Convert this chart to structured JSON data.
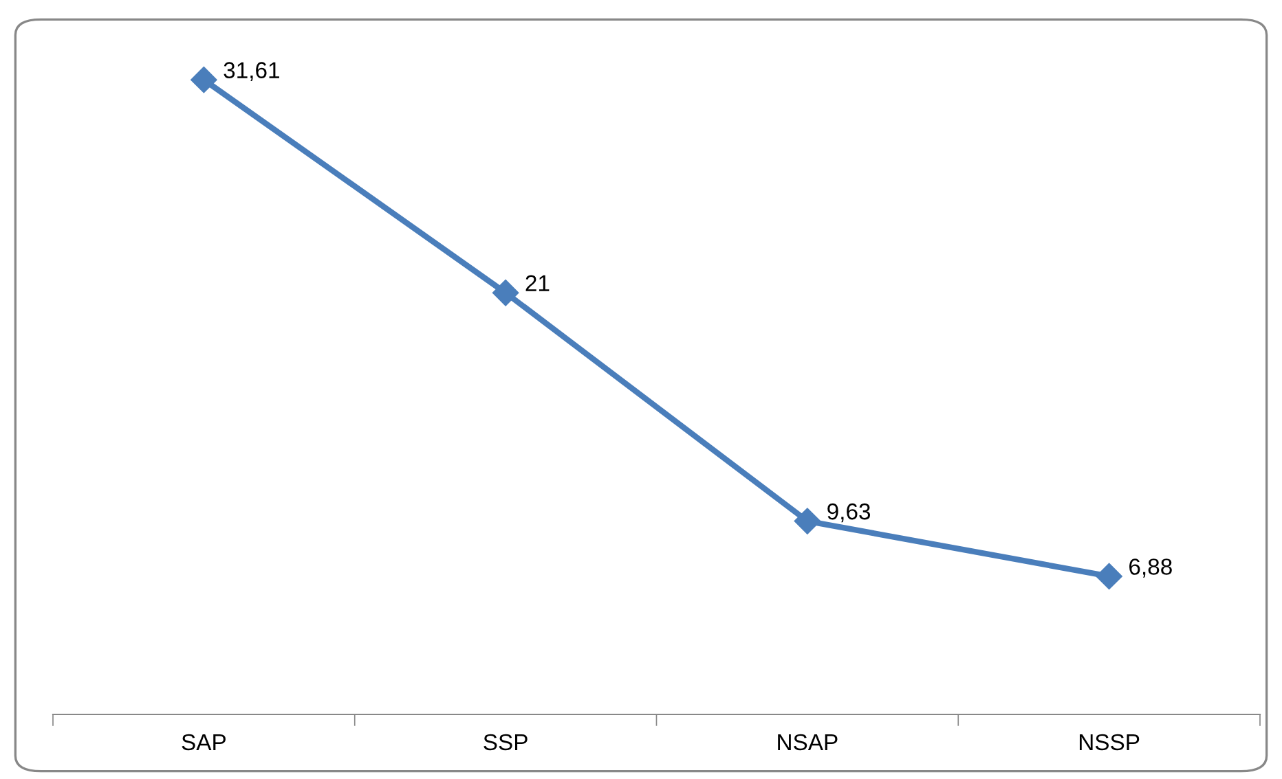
{
  "chart_data": {
    "type": "line",
    "categories": [
      "SAP",
      "SSP",
      "NSAP",
      "NSSP"
    ],
    "series": [
      {
        "color": "#4a7ebb",
        "values": [
          31.61,
          21,
          9.63,
          6.88
        ],
        "value_labels": [
          "31,61",
          "21",
          "9,63",
          "6,88"
        ]
      }
    ],
    "tick_labels": "x",
    "marker": "diamond",
    "line_style": "solid"
  }
}
